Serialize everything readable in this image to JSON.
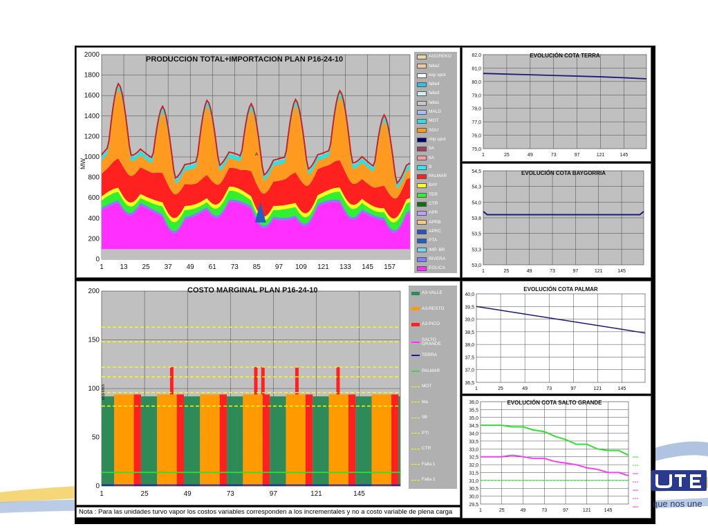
{
  "colors": {
    "grid_bg": "#c0c0c0",
    "legend_bg": "#b0b0b0",
    "line_navy": "#1a1a7a"
  },
  "production": {
    "title": "PRODUCCION TOTAL+IMPORTACION PLAN    P16-24-10",
    "ylabel": "MW",
    "y_ticks": [
      "0",
      "200",
      "400",
      "600",
      "800",
      "1000",
      "1200",
      "1400",
      "1600",
      "1800",
      "2000"
    ],
    "x_ticks": [
      "1",
      "13",
      "25",
      "37",
      "49",
      "61",
      "73",
      "85",
      "97",
      "109",
      "121",
      "133",
      "145",
      "157"
    ],
    "annotation": "A",
    "legend": [
      {
        "label": "AGGREKO",
        "color": "#e8d8a0"
      },
      {
        "label": "falla2",
        "color": "#f2c8a0"
      },
      {
        "label": "exp spot",
        "color": "#ffffff"
      },
      {
        "label": "falla4",
        "color": "#30c0e0"
      },
      {
        "label": "falla3",
        "color": "#d0f0f8"
      },
      {
        "label": "falla1",
        "color": "#c8c8c8"
      },
      {
        "label": "MALD",
        "color": "#a0c0ff"
      },
      {
        "label": "MOT",
        "color": "#30e0e0"
      },
      {
        "label": "SGU",
        "color": "#ff9a20"
      },
      {
        "label": "imp spot",
        "color": "#000070"
      },
      {
        "label": "5A",
        "color": "#a04060"
      },
      {
        "label": "6A",
        "color": "#f0a0a0"
      },
      {
        "label": "B",
        "color": "#30e8f0"
      },
      {
        "label": "PALMAR",
        "color": "#ff2020"
      },
      {
        "label": "BAY",
        "color": "#ffff20"
      },
      {
        "label": "TER",
        "color": "#30f030"
      },
      {
        "label": "CTR",
        "color": "#107010"
      },
      {
        "label": "APR",
        "color": "#c0a0ff"
      },
      {
        "label": "APRB",
        "color": "#f8c880"
      },
      {
        "label": "APRC",
        "color": "#3050c0"
      },
      {
        "label": "PTA",
        "color": "#2060c0"
      },
      {
        "label": "IMP. BR",
        "color": "#70d8f0"
      },
      {
        "label": "RIVERA",
        "color": "#8080ff"
      },
      {
        "label": "EOLICA",
        "color": "#ff30ff"
      }
    ]
  },
  "marginal": {
    "title": "COSTO MARGINAL PLAN    P16-24-10",
    "ylabel": "US$/MWh",
    "y_ticks": [
      "0",
      "50",
      "100",
      "150",
      "200"
    ],
    "x_ticks": [
      "1",
      "25",
      "49",
      "73",
      "97",
      "121",
      "145"
    ],
    "legend": [
      {
        "label": "A3-VALLE",
        "color": "#2e8b57",
        "kind": "box"
      },
      {
        "label": "A3-RESTO",
        "color": "#ff9a00",
        "kind": "box"
      },
      {
        "label": "A3-PICO",
        "color": "#ff2020",
        "kind": "box"
      },
      {
        "label": "SALTO GRANDE",
        "color": "#ff30ff",
        "kind": "line"
      },
      {
        "label": "TERRA",
        "color": "#1a1aa0",
        "kind": "line"
      },
      {
        "label": "PALMAR",
        "color": "#30e030",
        "kind": "line"
      },
      {
        "label": "MOT",
        "color": "#ffff00",
        "kind": "dash"
      },
      {
        "label": "6ta",
        "color": "#ffff00",
        "kind": "dash"
      },
      {
        "label": "5B",
        "color": "#ffff00",
        "kind": "dash"
      },
      {
        "label": "PTI",
        "color": "#ffff00",
        "kind": "dash"
      },
      {
        "label": "CTR",
        "color": "#ffff00",
        "kind": "dash"
      },
      {
        "label": "Falla 1",
        "color": "#ffff00",
        "kind": "dash"
      },
      {
        "label": "Falla 2",
        "color": "#ffff00",
        "kind": "dash"
      }
    ]
  },
  "terra": {
    "title": "EVOLUCIÓN COTA TERRA",
    "y_ticks": [
      "75,0",
      "76,0",
      "77,0",
      "78,0",
      "79,0",
      "80,0",
      "81,0",
      "82,0"
    ],
    "x_ticks": [
      "1",
      "25",
      "49",
      "73",
      "97",
      "121",
      "145"
    ]
  },
  "baygorria": {
    "title": "EVOLUCIÓN COTA BAYGORRIA",
    "y_ticks": [
      "53,0",
      "53,3",
      "53,5",
      "53,8",
      "54,0",
      "54,3",
      "54,5"
    ],
    "x_ticks": [
      "1",
      "25",
      "49",
      "73",
      "97",
      "121",
      "145"
    ]
  },
  "palmar": {
    "title": "EVOLUCIÓN COTA PALMAR",
    "y_ticks": [
      "36,5",
      "37,0",
      "37,5",
      "38,0",
      "38,5",
      "39,0",
      "39,5",
      "40,0"
    ],
    "x_ticks": [
      "1",
      "25",
      "49",
      "73",
      "97",
      "121",
      "145"
    ]
  },
  "salto": {
    "title": "EVOLUCIÓN COTA SALTO GRANDE",
    "y_ticks": [
      "29,5",
      "30,0",
      "30,5",
      "31,0",
      "31,5",
      "32,0",
      "32,5",
      "33,0",
      "33,5",
      "34,0",
      "34,5",
      "35,0",
      "35,5",
      "36,0"
    ],
    "x_ticks": [
      "1",
      "25",
      "49",
      "73",
      "97",
      "121",
      "145"
    ]
  },
  "nota": "Nota : Para las unidades turvo vapor los costos variables corresponden a los incrementales y no a costo variable de plena carga",
  "brand": {
    "logo_text": "UTE",
    "tagline": "que nos une"
  },
  "chart_data": [
    {
      "type": "area",
      "title": "PRODUCCION TOTAL+IMPORTACION PLAN    P16-24-10",
      "ylabel": "MW",
      "ylim": [
        0,
        2000
      ],
      "x": [
        1,
        13,
        25,
        37,
        49,
        61,
        73,
        85,
        97,
        109,
        121,
        133,
        145,
        157,
        168
      ],
      "series": [
        {
          "name": "EOLICA",
          "values": [
            590,
            530,
            540,
            400,
            560,
            450,
            580,
            380,
            540,
            480,
            560,
            470,
            540,
            470,
            550
          ]
        },
        {
          "name": "TER",
          "values": [
            690,
            600,
            640,
            500,
            660,
            540,
            680,
            500,
            650,
            580,
            660,
            560,
            650,
            570,
            660
          ]
        },
        {
          "name": "PALMAR",
          "values": [
            820,
            880,
            920,
            870,
            930,
            900,
            960,
            880,
            930,
            890,
            960,
            900,
            970,
            920,
            1020
          ]
        },
        {
          "name": "SGU",
          "values": [
            1350,
            1430,
            1720,
            1050,
            1680,
            1150,
            1800,
            1150,
            1780,
            1150,
            1800,
            1150,
            1800,
            1150,
            1800
          ]
        }
      ],
      "grid": true
    },
    {
      "type": "bar",
      "title": "COSTO MARGINAL PLAN    P16-24-10",
      "ylabel": "US$/MWh",
      "ylim": [
        0,
        200
      ],
      "x_range": [
        1,
        168
      ],
      "levels": {
        "A3-VALLE": 92,
        "A3-RESTO": 94,
        "A3-PICO": 94
      },
      "pico_peaks": [
        [
          40,
          122
        ],
        [
          87,
          122
        ],
        [
          91,
          122
        ],
        [
          110,
          122
        ],
        [
          133,
          122
        ]
      ],
      "reference_lines": {
        "MOT": 163,
        "6ta": 148,
        "5B": 122,
        "PTI": 112,
        "CTR": 96,
        "Falla 1": 82,
        "PALMAR": 14,
        "TERRA": 0
      },
      "grid": true
    },
    {
      "type": "line",
      "title": "EVOLUCIÓN COTA TERRA",
      "ylim": [
        75,
        82
      ],
      "x": [
        1,
        25,
        49,
        73,
        97,
        121,
        145,
        168
      ],
      "series": [
        {
          "values": [
            80.6,
            80.55,
            80.5,
            80.45,
            80.4,
            80.35,
            80.28,
            80.2
          ]
        }
      ],
      "grid": true
    },
    {
      "type": "line",
      "title": "EVOLUCIÓN COTA BAYGORRIA",
      "ylim": [
        53,
        54.5
      ],
      "x": [
        1,
        5,
        25,
        49,
        73,
        97,
        121,
        145,
        164,
        168
      ],
      "series": [
        {
          "values": [
            53.85,
            53.8,
            53.8,
            53.8,
            53.8,
            53.8,
            53.8,
            53.8,
            53.8,
            53.85
          ]
        }
      ],
      "grid": true
    },
    {
      "type": "line",
      "title": "EVOLUCIÓN COTA PALMAR",
      "ylim": [
        36.5,
        40
      ],
      "x": [
        1,
        25,
        49,
        73,
        97,
        121,
        145,
        168
      ],
      "series": [
        {
          "values": [
            39.5,
            39.35,
            39.2,
            39.05,
            38.9,
            38.75,
            38.6,
            38.45
          ]
        }
      ],
      "grid": true
    },
    {
      "type": "line",
      "title": "EVOLUCIÓN COTA SALTO GRANDE",
      "ylim": [
        29.5,
        36
      ],
      "x": [
        1,
        13,
        25,
        37,
        49,
        61,
        73,
        85,
        97,
        109,
        121,
        133,
        145,
        157,
        168
      ],
      "series": [
        {
          "values": [
            34.5,
            34.5,
            34.5,
            34.4,
            34.4,
            34.2,
            34.1,
            33.8,
            33.6,
            33.3,
            33.3,
            33.0,
            32.9,
            32.9,
            32.6
          ]
        },
        {
          "values": [
            32.5,
            32.5,
            32.5,
            32.6,
            32.5,
            32.4,
            32.4,
            32.2,
            32.1,
            32.0,
            31.8,
            31.7,
            31.5,
            31.5,
            31.3
          ]
        },
        {
          "values": [
            31.0,
            31.0,
            31.0,
            31.0,
            31.0,
            31.0,
            31.0,
            31.0,
            31.0,
            31.0,
            31.0,
            31.0,
            31.0,
            31.0,
            31.0
          ]
        }
      ],
      "grid": true
    }
  ]
}
